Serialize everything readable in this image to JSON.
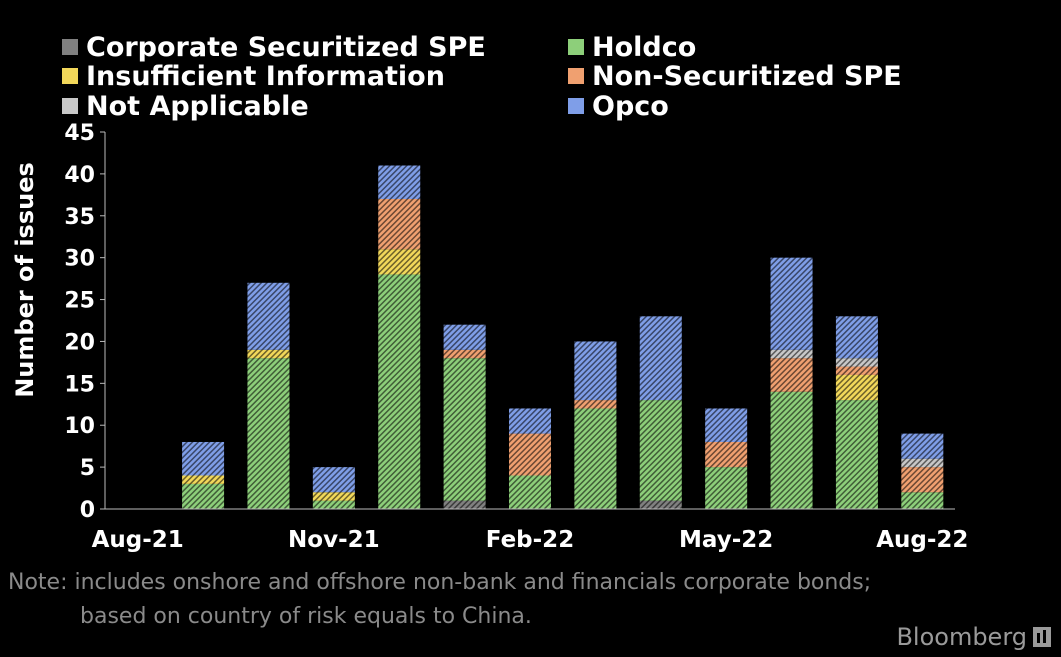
{
  "legend": [
    {
      "label": "Corporate Securitized SPE",
      "color": "#808080"
    },
    {
      "label": "Holdco",
      "color": "#8dcf7a"
    },
    {
      "label": "Insufficient Information",
      "color": "#f2d85a"
    },
    {
      "label": "Non-Securitized SPE",
      "color": "#f0a070"
    },
    {
      "label": "Not Applicable",
      "color": "#c8c8c8"
    },
    {
      "label": "Opco",
      "color": "#7f9ee8"
    }
  ],
  "note": {
    "line1": "Note: includes onshore and offshore non-bank and financials corporate bonds;",
    "line2": "based on country of risk equals to China."
  },
  "brand": "Bloomberg",
  "chart_data": {
    "type": "bar",
    "stacked": true,
    "ylabel": "Number of issues",
    "ylim": [
      0,
      45
    ],
    "yticks": [
      0,
      5,
      10,
      15,
      20,
      25,
      30,
      35,
      40,
      45
    ],
    "categories": [
      "Aug-21",
      "Sep-21",
      "Oct-21",
      "Nov-21",
      "Dec-21",
      "Jan-22",
      "Feb-22",
      "Mar-22",
      "Apr-22",
      "May-22",
      "Jun-22",
      "Jul-22",
      "Aug-22"
    ],
    "xtick_labels": [
      "Aug-21",
      "Nov-21",
      "Feb-22",
      "May-22",
      "Aug-22"
    ],
    "xtick_label_positions": [
      0,
      3,
      6,
      9,
      12
    ],
    "series": [
      {
        "name": "Corporate Securitized SPE",
        "color": "#808080",
        "values": [
          0,
          0,
          0,
          0,
          0,
          1,
          0,
          0,
          1,
          0,
          0,
          0,
          0
        ]
      },
      {
        "name": "Holdco",
        "color": "#8dcf7a",
        "values": [
          0,
          3,
          18,
          1,
          28,
          17,
          4,
          12,
          12,
          5,
          14,
          13,
          2
        ]
      },
      {
        "name": "Insufficient Information",
        "color": "#f2d85a",
        "values": [
          0,
          1,
          1,
          1,
          3,
          0,
          0,
          0,
          0,
          0,
          0,
          3,
          0
        ]
      },
      {
        "name": "Non-Securitized SPE",
        "color": "#f0a070",
        "values": [
          0,
          0,
          0,
          0,
          6,
          1,
          5,
          1,
          0,
          3,
          4,
          1,
          3
        ]
      },
      {
        "name": "Not Applicable",
        "color": "#c8c8c8",
        "values": [
          0,
          0,
          0,
          0,
          0,
          0,
          0,
          0,
          0,
          0,
          1,
          1,
          1
        ]
      },
      {
        "name": "Opco",
        "color": "#7f9ee8",
        "values": [
          0,
          4,
          8,
          3,
          4,
          3,
          3,
          7,
          10,
          4,
          11,
          5,
          3
        ]
      }
    ]
  }
}
